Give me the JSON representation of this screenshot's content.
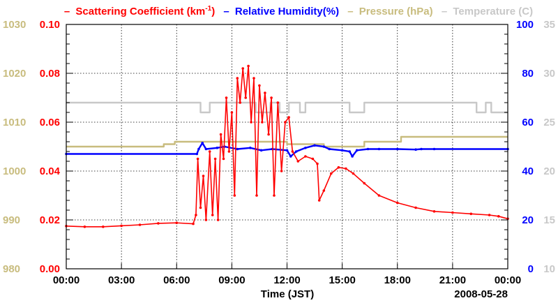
{
  "chart_data": {
    "type": "line",
    "title": "",
    "xlabel": "Time (JST)",
    "date_label": "2008-05-28",
    "x_ticks": [
      "00:00",
      "03:00",
      "06:00",
      "09:00",
      "12:00",
      "15:00",
      "18:00",
      "21:00",
      "00:00"
    ],
    "x_range_hours": [
      0,
      24
    ],
    "grid": true,
    "legend": [
      {
        "dash": "–",
        "text": "Scattering Coefficient (km",
        "sup": "-1",
        "tail": ")",
        "color": "#ff0000"
      },
      {
        "dash": "–",
        "text": "Relative Humidity(%)",
        "color": "#0000ff"
      },
      {
        "dash": "–",
        "text": "Pressure (hPa)",
        "color": "#c8bc7e"
      },
      {
        "dash": "–",
        "text": "Temperature (C)",
        "color": "#c8c8c8"
      }
    ],
    "axes": {
      "pressure": {
        "side": "left-outer",
        "color": "#c8bc7e",
        "range": [
          980,
          1030
        ],
        "ticks": [
          "980",
          "990",
          "1000",
          "1010",
          "1020",
          "1030"
        ]
      },
      "scattering": {
        "side": "left-inner",
        "color": "#ff0000",
        "range": [
          0,
          0.1
        ],
        "ticks": [
          "0.00",
          "0.02",
          "0.04",
          "0.06",
          "0.08",
          "0.10"
        ]
      },
      "humidity": {
        "side": "right-inner",
        "color": "#0000ff",
        "range": [
          0,
          100
        ],
        "ticks": [
          "0",
          "20",
          "40",
          "60",
          "80",
          "100"
        ]
      },
      "temperature": {
        "side": "right-outer",
        "color": "#c8c8c8",
        "range": [
          10,
          35
        ],
        "ticks": [
          "10",
          "15",
          "20",
          "25",
          "30",
          "35"
        ]
      }
    },
    "series": [
      {
        "name": "Scattering Coefficient",
        "axis": "scattering",
        "color": "#ff0000",
        "points": [
          [
            0,
            0.0175
          ],
          [
            1,
            0.0172
          ],
          [
            2,
            0.0172
          ],
          [
            3,
            0.0176
          ],
          [
            4,
            0.018
          ],
          [
            5,
            0.0186
          ],
          [
            6,
            0.0188
          ],
          [
            6.9,
            0.0184
          ],
          [
            7.05,
            0.022
          ],
          [
            7.15,
            0.045
          ],
          [
            7.3,
            0.025
          ],
          [
            7.45,
            0.038
          ],
          [
            7.6,
            0.02
          ],
          [
            7.8,
            0.048
          ],
          [
            7.95,
            0.022
          ],
          [
            8.1,
            0.045
          ],
          [
            8.25,
            0.02
          ],
          [
            8.4,
            0.055
          ],
          [
            8.55,
            0.045
          ],
          [
            8.7,
            0.07
          ],
          [
            8.85,
            0.048
          ],
          [
            9.0,
            0.064
          ],
          [
            9.15,
            0.03
          ],
          [
            9.3,
            0.078
          ],
          [
            9.45,
            0.068
          ],
          [
            9.6,
            0.082
          ],
          [
            9.75,
            0.07
          ],
          [
            9.9,
            0.083
          ],
          [
            10.05,
            0.06
          ],
          [
            10.2,
            0.078
          ],
          [
            10.35,
            0.03
          ],
          [
            10.5,
            0.075
          ],
          [
            10.65,
            0.06
          ],
          [
            10.8,
            0.072
          ],
          [
            11.0,
            0.055
          ],
          [
            11.15,
            0.07
          ],
          [
            11.3,
            0.03
          ],
          [
            11.5,
            0.068
          ],
          [
            11.7,
            0.04
          ],
          [
            11.9,
            0.06
          ],
          [
            12.1,
            0.062
          ],
          [
            12.3,
            0.048
          ],
          [
            12.6,
            0.044
          ],
          [
            13.0,
            0.046
          ],
          [
            13.4,
            0.045
          ],
          [
            13.65,
            0.043
          ],
          [
            13.75,
            0.028
          ],
          [
            14.0,
            0.032
          ],
          [
            14.4,
            0.039
          ],
          [
            14.8,
            0.0415
          ],
          [
            15.2,
            0.041
          ],
          [
            15.6,
            0.039
          ],
          [
            16.2,
            0.035
          ],
          [
            17.0,
            0.03
          ],
          [
            18.0,
            0.027
          ],
          [
            19.0,
            0.025
          ],
          [
            20.0,
            0.0235
          ],
          [
            21.0,
            0.023
          ],
          [
            22.0,
            0.0225
          ],
          [
            23.0,
            0.022
          ],
          [
            23.5,
            0.0215
          ],
          [
            24,
            0.0205
          ]
        ]
      },
      {
        "name": "Relative Humidity",
        "axis": "humidity",
        "color": "#0000ff",
        "points": [
          [
            0,
            47
          ],
          [
            7.1,
            47
          ],
          [
            7.2,
            49
          ],
          [
            7.4,
            51.5
          ],
          [
            7.6,
            49
          ],
          [
            8.2,
            49.5
          ],
          [
            8.6,
            50
          ],
          [
            9.3,
            49
          ],
          [
            10.0,
            49.5
          ],
          [
            10.6,
            48.5
          ],
          [
            11.2,
            49
          ],
          [
            12.0,
            48.5
          ],
          [
            12.2,
            46
          ],
          [
            12.5,
            48
          ],
          [
            13.0,
            49.5
          ],
          [
            13.5,
            50.5
          ],
          [
            14.0,
            50
          ],
          [
            14.3,
            49
          ],
          [
            15.0,
            48.5
          ],
          [
            15.4,
            48
          ],
          [
            15.55,
            46
          ],
          [
            15.8,
            48.5
          ],
          [
            16.4,
            49
          ],
          [
            17.0,
            49
          ],
          [
            18.0,
            49
          ],
          [
            19.0,
            48.8
          ],
          [
            19.3,
            49
          ],
          [
            20.0,
            49
          ],
          [
            24,
            49
          ]
        ]
      },
      {
        "name": "Pressure",
        "axis": "pressure",
        "color": "#c8bc7e",
        "points": [
          [
            0,
            1005
          ],
          [
            2.5,
            1005
          ],
          [
            2.5,
            1005
          ],
          [
            5.3,
            1005
          ],
          [
            5.3,
            1005.5
          ],
          [
            5.9,
            1005.5
          ],
          [
            5.9,
            1006
          ],
          [
            12.0,
            1006
          ],
          [
            12.0,
            1005.5
          ],
          [
            14.0,
            1005.5
          ],
          [
            14.0,
            1005
          ],
          [
            16.2,
            1005
          ],
          [
            16.2,
            1006
          ],
          [
            18.2,
            1006
          ],
          [
            18.2,
            1007
          ],
          [
            24,
            1007
          ]
        ]
      },
      {
        "name": "Temperature",
        "axis": "temperature",
        "color": "#c8c8c8",
        "points": [
          [
            0,
            27
          ],
          [
            7.3,
            27
          ],
          [
            7.3,
            26
          ],
          [
            7.8,
            26
          ],
          [
            7.8,
            27
          ],
          [
            10.3,
            27
          ],
          [
            10.3,
            26
          ],
          [
            11.1,
            26
          ],
          [
            11.1,
            27
          ],
          [
            11.6,
            27
          ],
          [
            11.6,
            26
          ],
          [
            12.1,
            26
          ],
          [
            12.1,
            27
          ],
          [
            12.7,
            27
          ],
          [
            12.7,
            26
          ],
          [
            13.0,
            26
          ],
          [
            13.0,
            27
          ],
          [
            15.4,
            27
          ],
          [
            15.4,
            26
          ],
          [
            16.2,
            26
          ],
          [
            16.2,
            27
          ],
          [
            22.3,
            27
          ],
          [
            22.3,
            26
          ],
          [
            22.8,
            26
          ],
          [
            22.8,
            27
          ],
          [
            23.1,
            27
          ],
          [
            23.1,
            26
          ],
          [
            24,
            26
          ]
        ]
      }
    ]
  }
}
